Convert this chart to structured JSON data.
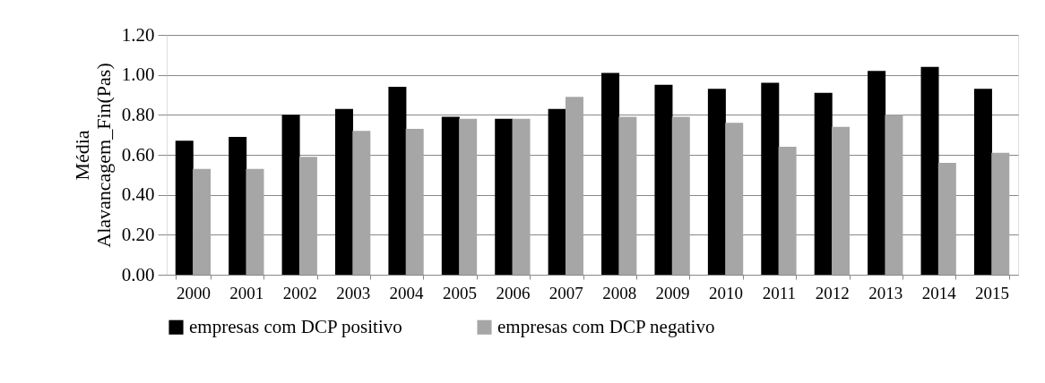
{
  "chart_data": {
    "type": "bar",
    "ylabel": "Média\nAlavancagem_Fin(Pas)",
    "categories": [
      "2000",
      "2001",
      "2002",
      "2003",
      "2004",
      "2005",
      "2006",
      "2007",
      "2008",
      "2009",
      "2010",
      "2011",
      "2012",
      "2013",
      "2014",
      "2015"
    ],
    "series": [
      {
        "name": "empresas com DCP positivo",
        "color": "#000000",
        "values": [
          0.67,
          0.69,
          0.8,
          0.83,
          0.94,
          0.79,
          0.78,
          0.83,
          1.01,
          0.95,
          0.93,
          0.96,
          0.91,
          1.02,
          1.04,
          0.93
        ]
      },
      {
        "name": "empresas com DCP negativo",
        "color": "#a6a6a6",
        "values": [
          0.53,
          0.53,
          0.59,
          0.72,
          0.73,
          0.78,
          0.78,
          0.89,
          0.79,
          0.79,
          0.76,
          0.64,
          0.74,
          0.8,
          0.56,
          0.61
        ]
      }
    ],
    "ylim": [
      0,
      1.2
    ],
    "yticks": [
      {
        "value": 0,
        "label": "0.00"
      },
      {
        "value": 0.2,
        "label": "0.20"
      },
      {
        "value": 0.4,
        "label": "0.40"
      },
      {
        "value": 0.6,
        "label": "0.60"
      },
      {
        "value": 0.8,
        "label": "0.80"
      },
      {
        "value": 1.0,
        "label": "1.00"
      },
      {
        "value": 1.2,
        "label": "1.20"
      }
    ],
    "grid": "y",
    "legend": "bottom"
  }
}
